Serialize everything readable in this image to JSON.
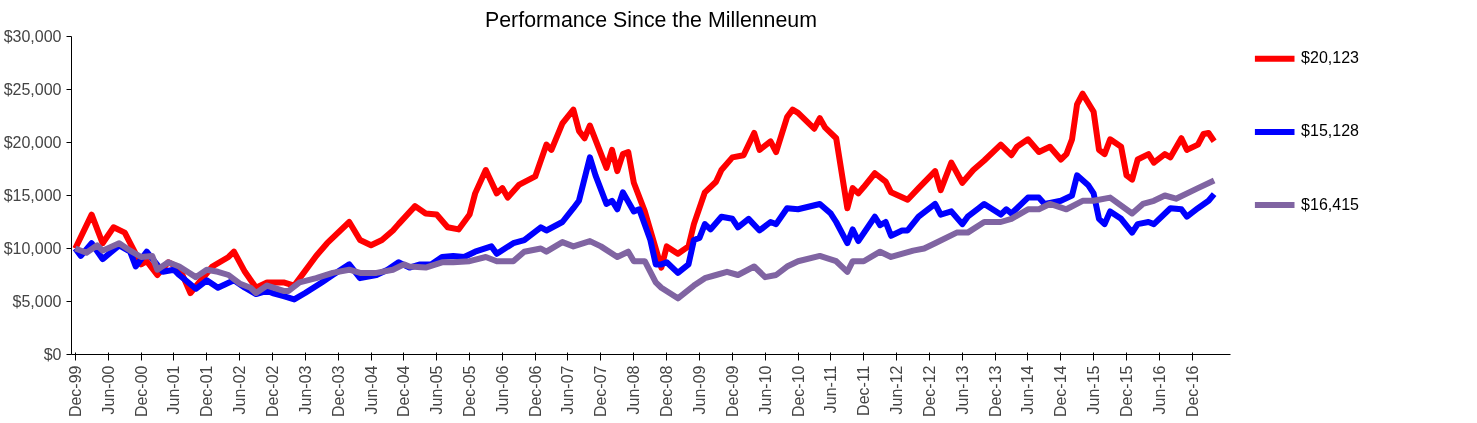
{
  "chart_data": {
    "type": "line",
    "title": "Performance Since the Millenneum",
    "xlim": [
      "1999-11-10",
      "2017-07-01"
    ],
    "xticks": [
      {
        "value": "1999-12",
        "label": "Dec-99"
      },
      {
        "value": "2000-06",
        "label": "Jun-00"
      },
      {
        "value": "2000-12",
        "label": "Dec-00"
      },
      {
        "value": "2001-06",
        "label": "Jun-01"
      },
      {
        "value": "2001-12",
        "label": "Dec-01"
      },
      {
        "value": "2002-06",
        "label": "Jun-02"
      },
      {
        "value": "2002-12",
        "label": "Dec-02"
      },
      {
        "value": "2003-06",
        "label": "Jun-03"
      },
      {
        "value": "2003-12",
        "label": "Dec-03"
      },
      {
        "value": "2004-06",
        "label": "Jun-04"
      },
      {
        "value": "2004-12",
        "label": "Dec-04"
      },
      {
        "value": "2005-06",
        "label": "Jun-05"
      },
      {
        "value": "2005-12",
        "label": "Dec-05"
      },
      {
        "value": "2006-06",
        "label": "Jun-06"
      },
      {
        "value": "2006-12",
        "label": "Dec-06"
      },
      {
        "value": "2007-06",
        "label": "Jun-07"
      },
      {
        "value": "2007-12",
        "label": "Dec-07"
      },
      {
        "value": "2008-06",
        "label": "Jun-08"
      },
      {
        "value": "2008-12",
        "label": "Dec-08"
      },
      {
        "value": "2009-06",
        "label": "Jun-09"
      },
      {
        "value": "2009-12",
        "label": "Dec-09"
      },
      {
        "value": "2010-06",
        "label": "Jun-10"
      },
      {
        "value": "2010-12",
        "label": "Dec-10"
      },
      {
        "value": "2011-06",
        "label": "Jun-11"
      },
      {
        "value": "2011-12",
        "label": "Dec-11"
      },
      {
        "value": "2012-06",
        "label": "Jun-12"
      },
      {
        "value": "2012-12",
        "label": "Dec-12"
      },
      {
        "value": "2013-06",
        "label": "Jun-13"
      },
      {
        "value": "2013-12",
        "label": "Dec-13"
      },
      {
        "value": "2014-06",
        "label": "Jun-14"
      },
      {
        "value": "2014-12",
        "label": "Dec-14"
      },
      {
        "value": "2015-06",
        "label": "Jun-15"
      },
      {
        "value": "2015-12",
        "label": "Dec-15"
      },
      {
        "value": "2016-06",
        "label": "Jun-16"
      },
      {
        "value": "2016-12",
        "label": "Dec-16"
      }
    ],
    "ylim": [
      0,
      30000
    ],
    "yticks": [
      {
        "value": 0,
        "label": "$0"
      },
      {
        "value": 5000,
        "label": "$5,000"
      },
      {
        "value": 10000,
        "label": "$10,000"
      },
      {
        "value": 15000,
        "label": "$15,000"
      },
      {
        "value": 20000,
        "label": "$20,000"
      },
      {
        "value": 25000,
        "label": "$25,000"
      },
      {
        "value": 30000,
        "label": "$30,000"
      }
    ],
    "grid": false,
    "marker": "none",
    "line_style": "solid",
    "series": [
      {
        "color": "#ff0000",
        "x": [
          "1999-12",
          "2000-03",
          "2000-05",
          "2000-07",
          "2000-09",
          "2000-12",
          "2001-01",
          "2001-03",
          "2001-05",
          "2001-07",
          "2001-09",
          "2002-01",
          "2002-04",
          "2002-05",
          "2002-07",
          "2002-09",
          "2002-11",
          "2003-02",
          "2003-04",
          "2003-08",
          "2003-10",
          "2004-02",
          "2004-04",
          "2004-06",
          "2004-08",
          "2004-10",
          "2004-11",
          "2005-02",
          "2005-04",
          "2005-06",
          "2005-08",
          "2005-10",
          "2005-12",
          "2006-01",
          "2006-03",
          "2006-05",
          "2006-06",
          "2006-07",
          "2006-09",
          "2006-12",
          "2007-02",
          "2007-03",
          "2007-05",
          "2007-07",
          "2007-08",
          "2007-09",
          "2007-10",
          "2008-01",
          "2008-02",
          "2008-03",
          "2008-04",
          "2008-05",
          "2008-06",
          "2008-08",
          "2008-11",
          "2008-12",
          "2009-02",
          "2009-04",
          "2009-05",
          "2009-07",
          "2009-09",
          "2009-10",
          "2009-12",
          "2010-02",
          "2010-04",
          "2010-05",
          "2010-07",
          "2010-08",
          "2010-10",
          "2010-11",
          "2010-12",
          "2011-03",
          "2011-04",
          "2011-05",
          "2011-07",
          "2011-09",
          "2011-10",
          "2011-11",
          "2011-12",
          "2012-02",
          "2012-04",
          "2012-05",
          "2012-08",
          "2012-10",
          "2013-01",
          "2013-02",
          "2013-04",
          "2013-06",
          "2013-08",
          "2013-10",
          "2014-01",
          "2014-03",
          "2014-04",
          "2014-06",
          "2014-08",
          "2014-10",
          "2014-12",
          "2015-01",
          "2015-02",
          "2015-03",
          "2015-04",
          "2015-06",
          "2015-07",
          "2015-08",
          "2015-09",
          "2015-11",
          "2015-12",
          "2016-01",
          "2016-02",
          "2016-04",
          "2016-05",
          "2016-07",
          "2016-08",
          "2016-10",
          "2016-11",
          "2017-01",
          "2017-02",
          "2017-03",
          "2017-04"
        ],
        "values": [
          10000,
          13200,
          10500,
          12000,
          11500,
          8500,
          8800,
          7500,
          8700,
          8200,
          5800,
          8300,
          9200,
          9700,
          7800,
          6300,
          6800,
          6800,
          6500,
          9300,
          10500,
          12500,
          10800,
          10300,
          10800,
          11700,
          12300,
          14000,
          13300,
          13200,
          12000,
          11800,
          13200,
          15200,
          17400,
          15200,
          15700,
          14800,
          16000,
          16800,
          19800,
          19300,
          21800,
          23100,
          21100,
          20400,
          21600,
          17600,
          19300,
          17300,
          18900,
          19100,
          16200,
          13500,
          8200,
          10200,
          9500,
          10200,
          12300,
          15300,
          16300,
          17400,
          18600,
          18800,
          20900,
          19300,
          20100,
          19100,
          22400,
          23100,
          22800,
          21300,
          22300,
          21400,
          20400,
          13800,
          15700,
          15200,
          15800,
          17100,
          16300,
          15300,
          14600,
          15700,
          17300,
          15500,
          18100,
          16200,
          17400,
          18300,
          19800,
          18800,
          19600,
          20300,
          19100,
          19600,
          18400,
          18900,
          20300,
          23600,
          24600,
          22900,
          19300,
          18900,
          20300,
          19600,
          16900,
          16500,
          18400,
          18900,
          18100,
          18900,
          18600,
          20400,
          19300,
          19800,
          20800,
          20900,
          20123
        ]
      },
      {
        "color": "#0000ff",
        "x": [
          "1999-12",
          "2000-01",
          "2000-03",
          "2000-05",
          "2000-08",
          "2000-10",
          "2000-11",
          "2001-01",
          "2001-04",
          "2001-06",
          "2001-07",
          "2001-10",
          "2001-12",
          "2002-02",
          "2002-05",
          "2002-07",
          "2002-09",
          "2002-11",
          "2002-12",
          "2003-02",
          "2003-04",
          "2003-06",
          "2003-09",
          "2003-11",
          "2004-02",
          "2004-04",
          "2004-07",
          "2004-09",
          "2004-11",
          "2005-01",
          "2005-03",
          "2005-05",
          "2005-07",
          "2005-09",
          "2005-11",
          "2006-01",
          "2006-04",
          "2006-05",
          "2006-08",
          "2006-10",
          "2007-01",
          "2007-02",
          "2007-05",
          "2007-07",
          "2007-08",
          "2007-10",
          "2007-11",
          "2008-01",
          "2008-02",
          "2008-03",
          "2008-04",
          "2008-06",
          "2008-07",
          "2008-09",
          "2008-10",
          "2008-11",
          "2008-12",
          "2009-02",
          "2009-04",
          "2009-05",
          "2009-06",
          "2009-07",
          "2009-08",
          "2009-10",
          "2009-12",
          "2010-01",
          "2010-03",
          "2010-05",
          "2010-07",
          "2010-08",
          "2010-10",
          "2010-12",
          "2011-04",
          "2011-06",
          "2011-07",
          "2011-09",
          "2011-10",
          "2011-11",
          "2012-02",
          "2012-03",
          "2012-04",
          "2012-05",
          "2012-07",
          "2012-08",
          "2012-10",
          "2013-01",
          "2013-02",
          "2013-04",
          "2013-06",
          "2013-07",
          "2013-09",
          "2013-10",
          "2014-01",
          "2014-02",
          "2014-03",
          "2014-04",
          "2014-06",
          "2014-08",
          "2014-09",
          "2014-10",
          "2014-12",
          "2015-02",
          "2015-03",
          "2015-05",
          "2015-06",
          "2015-07",
          "2015-08",
          "2015-09",
          "2015-11",
          "2016-01",
          "2016-02",
          "2016-04",
          "2016-05",
          "2016-08",
          "2016-10",
          "2016-11",
          "2017-01",
          "2017-03",
          "2017-04"
        ],
        "values": [
          10000,
          9300,
          10500,
          9000,
          10300,
          9700,
          8300,
          9700,
          7800,
          8000,
          7500,
          6200,
          7000,
          6300,
          7000,
          6300,
          5700,
          6000,
          5800,
          5500,
          5200,
          5800,
          6800,
          7500,
          8500,
          7200,
          7500,
          8000,
          8700,
          8200,
          8500,
          8500,
          9200,
          9300,
          9200,
          9700,
          10200,
          9500,
          10500,
          10800,
          12000,
          11700,
          12500,
          13800,
          14500,
          18600,
          16900,
          14200,
          14500,
          13700,
          15300,
          13500,
          13700,
          10800,
          8500,
          8500,
          8700,
          7700,
          8500,
          10800,
          11000,
          12300,
          11800,
          13000,
          12800,
          12000,
          12800,
          11700,
          12500,
          12300,
          13800,
          13700,
          14200,
          13300,
          12500,
          10500,
          11800,
          10700,
          13000,
          12200,
          12500,
          11200,
          11700,
          11700,
          13000,
          14200,
          13200,
          13500,
          12300,
          13000,
          13800,
          14200,
          13200,
          13700,
          13300,
          13800,
          14800,
          14800,
          14200,
          14300,
          14500,
          15000,
          16900,
          16000,
          15200,
          12800,
          12300,
          13500,
          12800,
          11500,
          12300,
          12500,
          12300,
          13800,
          13700,
          13000,
          13800,
          14500,
          15128
        ]
      },
      {
        "color": "#8064a2",
        "x": [
          "1999-12",
          "2000-02",
          "2000-04",
          "2000-05",
          "2000-08",
          "2000-10",
          "2000-12",
          "2001-02",
          "2001-03",
          "2001-05",
          "2001-07",
          "2001-10",
          "2001-12",
          "2002-02",
          "2002-04",
          "2002-06",
          "2002-08",
          "2002-09",
          "2002-11",
          "2003-02",
          "2003-03",
          "2003-05",
          "2003-08",
          "2003-11",
          "2004-02",
          "2004-04",
          "2004-07",
          "2004-10",
          "2004-12",
          "2005-01",
          "2005-04",
          "2005-07",
          "2005-09",
          "2005-12",
          "2006-03",
          "2006-05",
          "2006-08",
          "2006-10",
          "2007-01",
          "2007-02",
          "2007-05",
          "2007-07",
          "2007-10",
          "2007-12",
          "2008-03",
          "2008-05",
          "2008-06",
          "2008-08",
          "2008-10",
          "2008-11",
          "2009-02",
          "2009-05",
          "2009-07",
          "2009-09",
          "2009-11",
          "2010-01",
          "2010-04",
          "2010-06",
          "2010-08",
          "2010-10",
          "2010-12",
          "2011-04",
          "2011-07",
          "2011-09",
          "2011-10",
          "2011-12",
          "2012-03",
          "2012-05",
          "2012-09",
          "2012-11",
          "2013-01",
          "2013-05",
          "2013-07",
          "2013-10",
          "2014-01",
          "2014-03",
          "2014-06",
          "2014-08",
          "2014-10",
          "2015-01",
          "2015-04",
          "2015-06",
          "2015-09",
          "2016-01",
          "2016-03",
          "2016-05",
          "2016-07",
          "2016-09",
          "2017-01",
          "2017-04"
        ],
        "values": [
          10000,
          9600,
          10300,
          9800,
          10500,
          9800,
          9200,
          9300,
          8000,
          8700,
          8300,
          7300,
          8000,
          7800,
          7500,
          6700,
          6300,
          5800,
          6500,
          6000,
          6000,
          6800,
          7200,
          7700,
          8000,
          7700,
          7700,
          8000,
          8500,
          8300,
          8200,
          8700,
          8700,
          8800,
          9200,
          8800,
          8800,
          9700,
          10000,
          9700,
          10600,
          10200,
          10700,
          10200,
          9200,
          9700,
          8800,
          8800,
          6800,
          6300,
          5300,
          6500,
          7200,
          7500,
          7800,
          7500,
          8300,
          7300,
          7500,
          8300,
          8800,
          9300,
          8800,
          7800,
          8800,
          8800,
          9700,
          9200,
          9800,
          10000,
          10500,
          11500,
          11500,
          12500,
          12500,
          12800,
          13700,
          13700,
          14200,
          13700,
          14500,
          14500,
          14800,
          13300,
          14200,
          14500,
          15000,
          14700,
          15700,
          16415
        ]
      }
    ],
    "annotations": [
      "$20,123",
      "$15,128",
      "$16,415"
    ]
  }
}
